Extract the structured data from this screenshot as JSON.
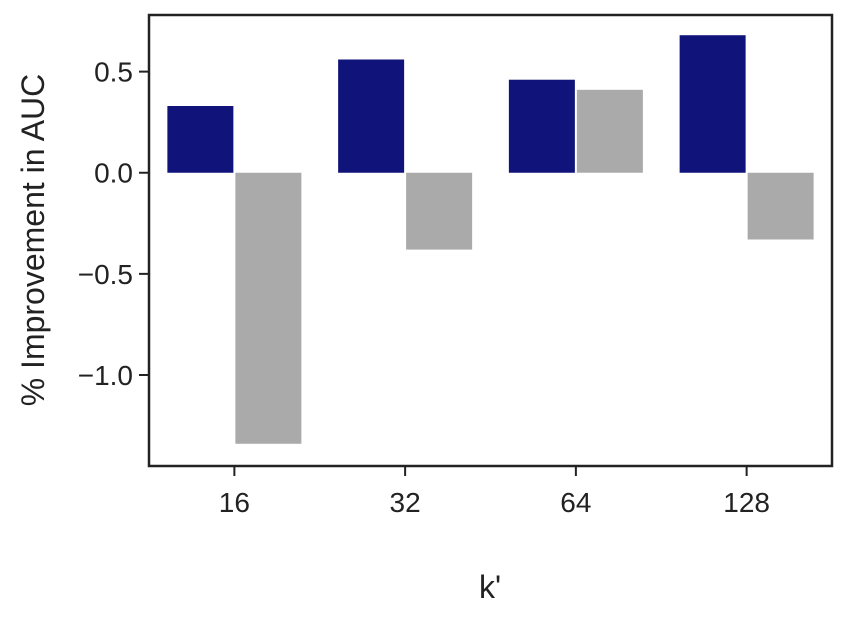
{
  "chart_data": {
    "type": "bar",
    "xlabel": "k'",
    "ylabel": "% Improvement in AUC",
    "categories": [
      "16",
      "32",
      "64",
      "128"
    ],
    "series": [
      {
        "values": [
          0.33,
          0.56,
          0.46,
          0.68
        ],
        "color": "#10137a"
      },
      {
        "values": [
          -1.34,
          -0.38,
          0.41,
          -0.33
        ],
        "color": "#aaaaaa"
      }
    ],
    "ylim": [
      -1.45,
      0.78
    ],
    "yticks": [
      -1.0,
      -0.5,
      0.0,
      0.5
    ],
    "ytick_labels": [
      "−1.0",
      "−0.5",
      "0.0",
      "0.5"
    ],
    "grid": false,
    "legend": "none"
  }
}
